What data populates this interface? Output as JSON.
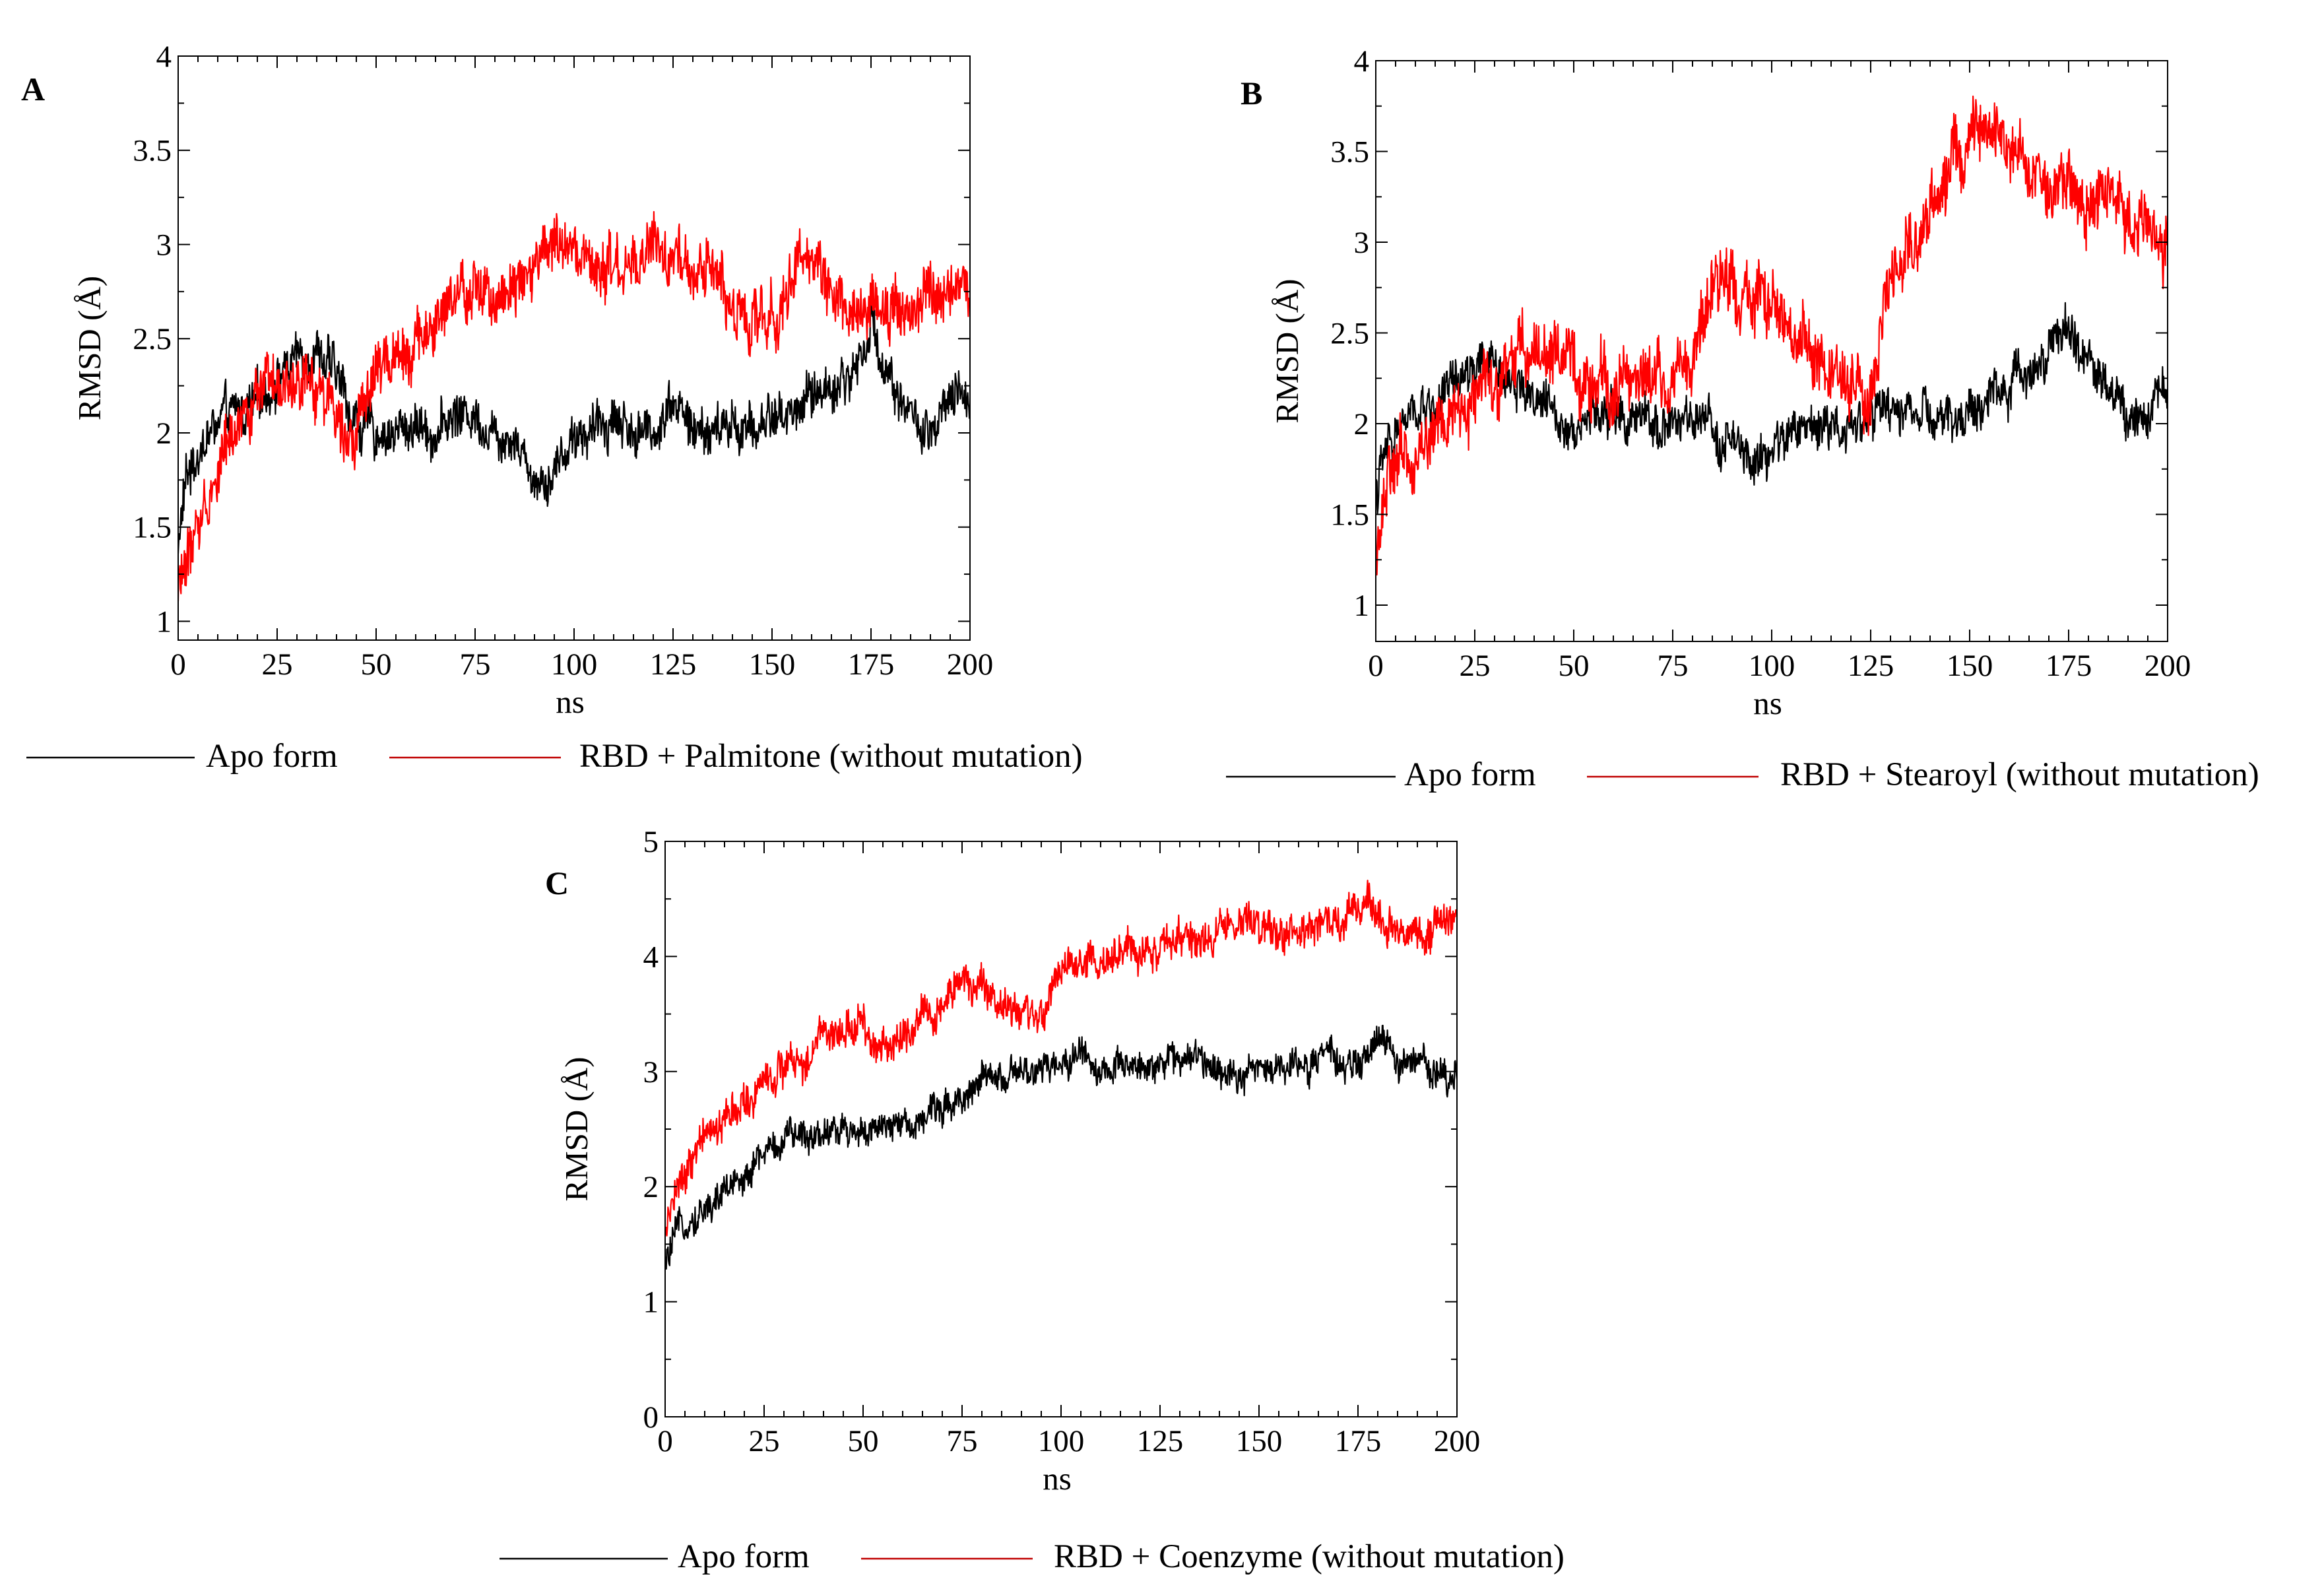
{
  "colors": {
    "apo": "#000000",
    "ligand": "#ff0000",
    "axis": "#000000",
    "background": "#ffffff"
  },
  "chart_data": [
    {
      "id": "A",
      "panel_label": "A",
      "type": "line",
      "title": "",
      "xlabel": "ns",
      "ylabel": "RMSD (Å)",
      "xlim": [
        0,
        200
      ],
      "ylim": [
        0.9,
        4
      ],
      "xticks": [
        "0",
        "25",
        "50",
        "75",
        "100",
        "125",
        "150",
        "175",
        "200"
      ],
      "yticks": [
        "1",
        "1.5",
        "2",
        "2.5",
        "3",
        "3.5",
        "4"
      ],
      "grid": false,
      "legend": [
        {
          "label": "Apo form",
          "series": "apo"
        },
        {
          "label": "RBD + Palmitone (without mutation)",
          "series": "ligand"
        }
      ],
      "series": [
        {
          "name": "Apo form",
          "key": "apo",
          "noise": 0.09,
          "x": [
            0,
            2,
            5,
            10,
            15,
            20,
            25,
            30,
            35,
            40,
            45,
            50,
            55,
            60,
            65,
            70,
            75,
            80,
            85,
            90,
            95,
            100,
            105,
            110,
            115,
            120,
            125,
            130,
            135,
            140,
            145,
            150,
            155,
            160,
            165,
            170,
            175,
            180,
            185,
            190,
            195,
            200
          ],
          "y": [
            1.4,
            1.75,
            1.9,
            2.05,
            2.1,
            2.15,
            2.3,
            2.4,
            2.45,
            2.3,
            2.05,
            2.0,
            2.0,
            2.05,
            2.0,
            2.1,
            2.1,
            2.0,
            2.0,
            1.75,
            1.8,
            2.0,
            2.0,
            2.1,
            2.0,
            2.0,
            2.2,
            2.0,
            2.0,
            2.05,
            2.0,
            2.1,
            2.1,
            2.2,
            2.25,
            2.3,
            2.55,
            2.3,
            2.1,
            1.95,
            2.15,
            2.2
          ]
        },
        {
          "name": "RBD + Palmitone (without mutation)",
          "key": "ligand",
          "noise": 0.11,
          "x": [
            0,
            2,
            5,
            10,
            15,
            20,
            25,
            30,
            35,
            40,
            45,
            50,
            55,
            60,
            65,
            70,
            75,
            80,
            85,
            90,
            95,
            100,
            105,
            110,
            115,
            120,
            125,
            130,
            135,
            140,
            145,
            150,
            155,
            160,
            165,
            170,
            175,
            180,
            185,
            190,
            195,
            200
          ],
          "y": [
            1.2,
            1.3,
            1.5,
            1.8,
            2.1,
            2.2,
            2.2,
            2.2,
            2.25,
            2.15,
            2.0,
            2.3,
            2.45,
            2.5,
            2.55,
            2.7,
            2.75,
            2.7,
            2.85,
            2.9,
            3.0,
            2.9,
            2.85,
            2.85,
            2.85,
            3.0,
            2.9,
            2.8,
            2.9,
            2.7,
            2.55,
            2.6,
            2.85,
            2.9,
            2.8,
            2.65,
            2.65,
            2.7,
            2.65,
            2.7,
            2.7,
            2.8
          ]
        }
      ]
    },
    {
      "id": "B",
      "panel_label": "B",
      "type": "line",
      "title": "",
      "xlabel": "ns",
      "ylabel": "RMSD (Å)",
      "xlim": [
        0,
        200
      ],
      "ylim": [
        0.8,
        4
      ],
      "xticks": [
        "0",
        "25",
        "50",
        "75",
        "100",
        "125",
        "150",
        "175",
        "200"
      ],
      "yticks": [
        "1",
        "1.5",
        "2",
        "2.5",
        "3",
        "3.5",
        "4"
      ],
      "grid": false,
      "legend": [
        {
          "label": "Apo form",
          "series": "apo"
        },
        {
          "label": "RBD + Stearoyl (without mutation)",
          "series": "ligand"
        }
      ],
      "series": [
        {
          "name": "Apo form",
          "key": "apo",
          "noise": 0.09,
          "x": [
            0,
            2,
            5,
            10,
            15,
            20,
            25,
            30,
            35,
            40,
            45,
            50,
            55,
            60,
            65,
            70,
            75,
            80,
            85,
            90,
            95,
            100,
            105,
            110,
            115,
            120,
            125,
            130,
            135,
            140,
            145,
            150,
            155,
            160,
            165,
            170,
            175,
            180,
            185,
            190,
            195,
            200
          ],
          "y": [
            1.6,
            1.8,
            1.95,
            2.05,
            2.1,
            2.2,
            2.3,
            2.3,
            2.25,
            2.15,
            2.05,
            2.0,
            2.05,
            2.05,
            2.0,
            2.0,
            2.0,
            2.0,
            1.95,
            1.9,
            1.75,
            1.85,
            1.95,
            2.0,
            2.0,
            2.0,
            2.05,
            2.05,
            2.1,
            2.0,
            2.0,
            2.05,
            2.15,
            2.2,
            2.3,
            2.45,
            2.5,
            2.35,
            2.2,
            2.05,
            2.1,
            2.2
          ]
        },
        {
          "name": "RBD + Stearoyl (without mutation)",
          "key": "ligand",
          "noise": 0.13,
          "x": [
            0,
            2,
            5,
            10,
            15,
            20,
            25,
            30,
            35,
            40,
            45,
            50,
            55,
            60,
            65,
            70,
            75,
            80,
            85,
            90,
            95,
            100,
            105,
            110,
            115,
            120,
            125,
            130,
            135,
            140,
            145,
            150,
            155,
            160,
            165,
            170,
            175,
            180,
            185,
            190,
            195,
            200
          ],
          "y": [
            1.3,
            1.6,
            1.75,
            1.85,
            1.95,
            2.05,
            2.15,
            2.25,
            2.35,
            2.45,
            2.4,
            2.25,
            2.2,
            2.2,
            2.3,
            2.25,
            2.2,
            2.4,
            2.7,
            2.8,
            2.75,
            2.6,
            2.5,
            2.4,
            2.3,
            2.15,
            2.1,
            2.8,
            3.0,
            3.2,
            3.4,
            3.5,
            3.55,
            3.5,
            3.4,
            3.3,
            3.3,
            3.25,
            3.2,
            3.15,
            3.1,
            3.0
          ]
        }
      ]
    },
    {
      "id": "C",
      "panel_label": "C",
      "type": "line",
      "title": "",
      "xlabel": "ns",
      "ylabel": "RMSD (Å)",
      "xlim": [
        0,
        200
      ],
      "ylim": [
        0,
        5
      ],
      "xticks": [
        "0",
        "25",
        "50",
        "75",
        "100",
        "125",
        "150",
        "175",
        "200"
      ],
      "yticks": [
        "0",
        "1",
        "2",
        "3",
        "4",
        "5"
      ],
      "grid": false,
      "legend": [
        {
          "label": "Apo form",
          "series": "apo"
        },
        {
          "label": "RBD + Coenzyme (without mutation)",
          "series": "ligand"
        }
      ],
      "series": [
        {
          "name": "Apo form",
          "key": "apo",
          "noise": 0.1,
          "x": [
            0,
            2,
            5,
            10,
            15,
            20,
            25,
            30,
            35,
            40,
            45,
            50,
            55,
            60,
            65,
            70,
            75,
            80,
            85,
            90,
            95,
            100,
            105,
            110,
            115,
            120,
            125,
            130,
            135,
            140,
            145,
            150,
            155,
            160,
            165,
            170,
            175,
            180,
            185,
            190,
            195,
            200
          ],
          "y": [
            1.3,
            1.5,
            1.7,
            1.8,
            1.95,
            2.1,
            2.3,
            2.4,
            2.45,
            2.5,
            2.5,
            2.5,
            2.45,
            2.55,
            2.6,
            2.7,
            2.8,
            2.9,
            2.95,
            2.95,
            3.0,
            3.05,
            3.2,
            3.0,
            3.0,
            3.05,
            3.1,
            3.1,
            3.1,
            3.05,
            3.0,
            3.0,
            3.05,
            3.05,
            3.1,
            3.1,
            3.0,
            3.3,
            3.1,
            3.05,
            3.0,
            3.0
          ]
        },
        {
          "name": "RBD + Coenzyme (without mutation)",
          "key": "ligand",
          "noise": 0.12,
          "x": [
            0,
            2,
            5,
            10,
            15,
            20,
            25,
            30,
            35,
            40,
            45,
            50,
            55,
            60,
            65,
            70,
            75,
            80,
            85,
            90,
            95,
            100,
            105,
            110,
            115,
            120,
            125,
            130,
            135,
            140,
            145,
            150,
            155,
            160,
            165,
            170,
            175,
            180,
            185,
            190,
            195,
            200
          ],
          "y": [
            1.5,
            1.9,
            2.1,
            2.4,
            2.6,
            2.7,
            2.9,
            3.0,
            3.1,
            3.3,
            3.4,
            3.4,
            3.2,
            3.3,
            3.5,
            3.6,
            3.75,
            3.7,
            3.55,
            3.5,
            3.5,
            3.85,
            3.9,
            3.95,
            4.0,
            4.0,
            4.1,
            4.1,
            4.15,
            4.25,
            4.3,
            4.25,
            4.2,
            4.2,
            4.25,
            4.3,
            4.4,
            4.35,
            4.25,
            4.2,
            4.25,
            4.3
          ]
        }
      ]
    }
  ]
}
